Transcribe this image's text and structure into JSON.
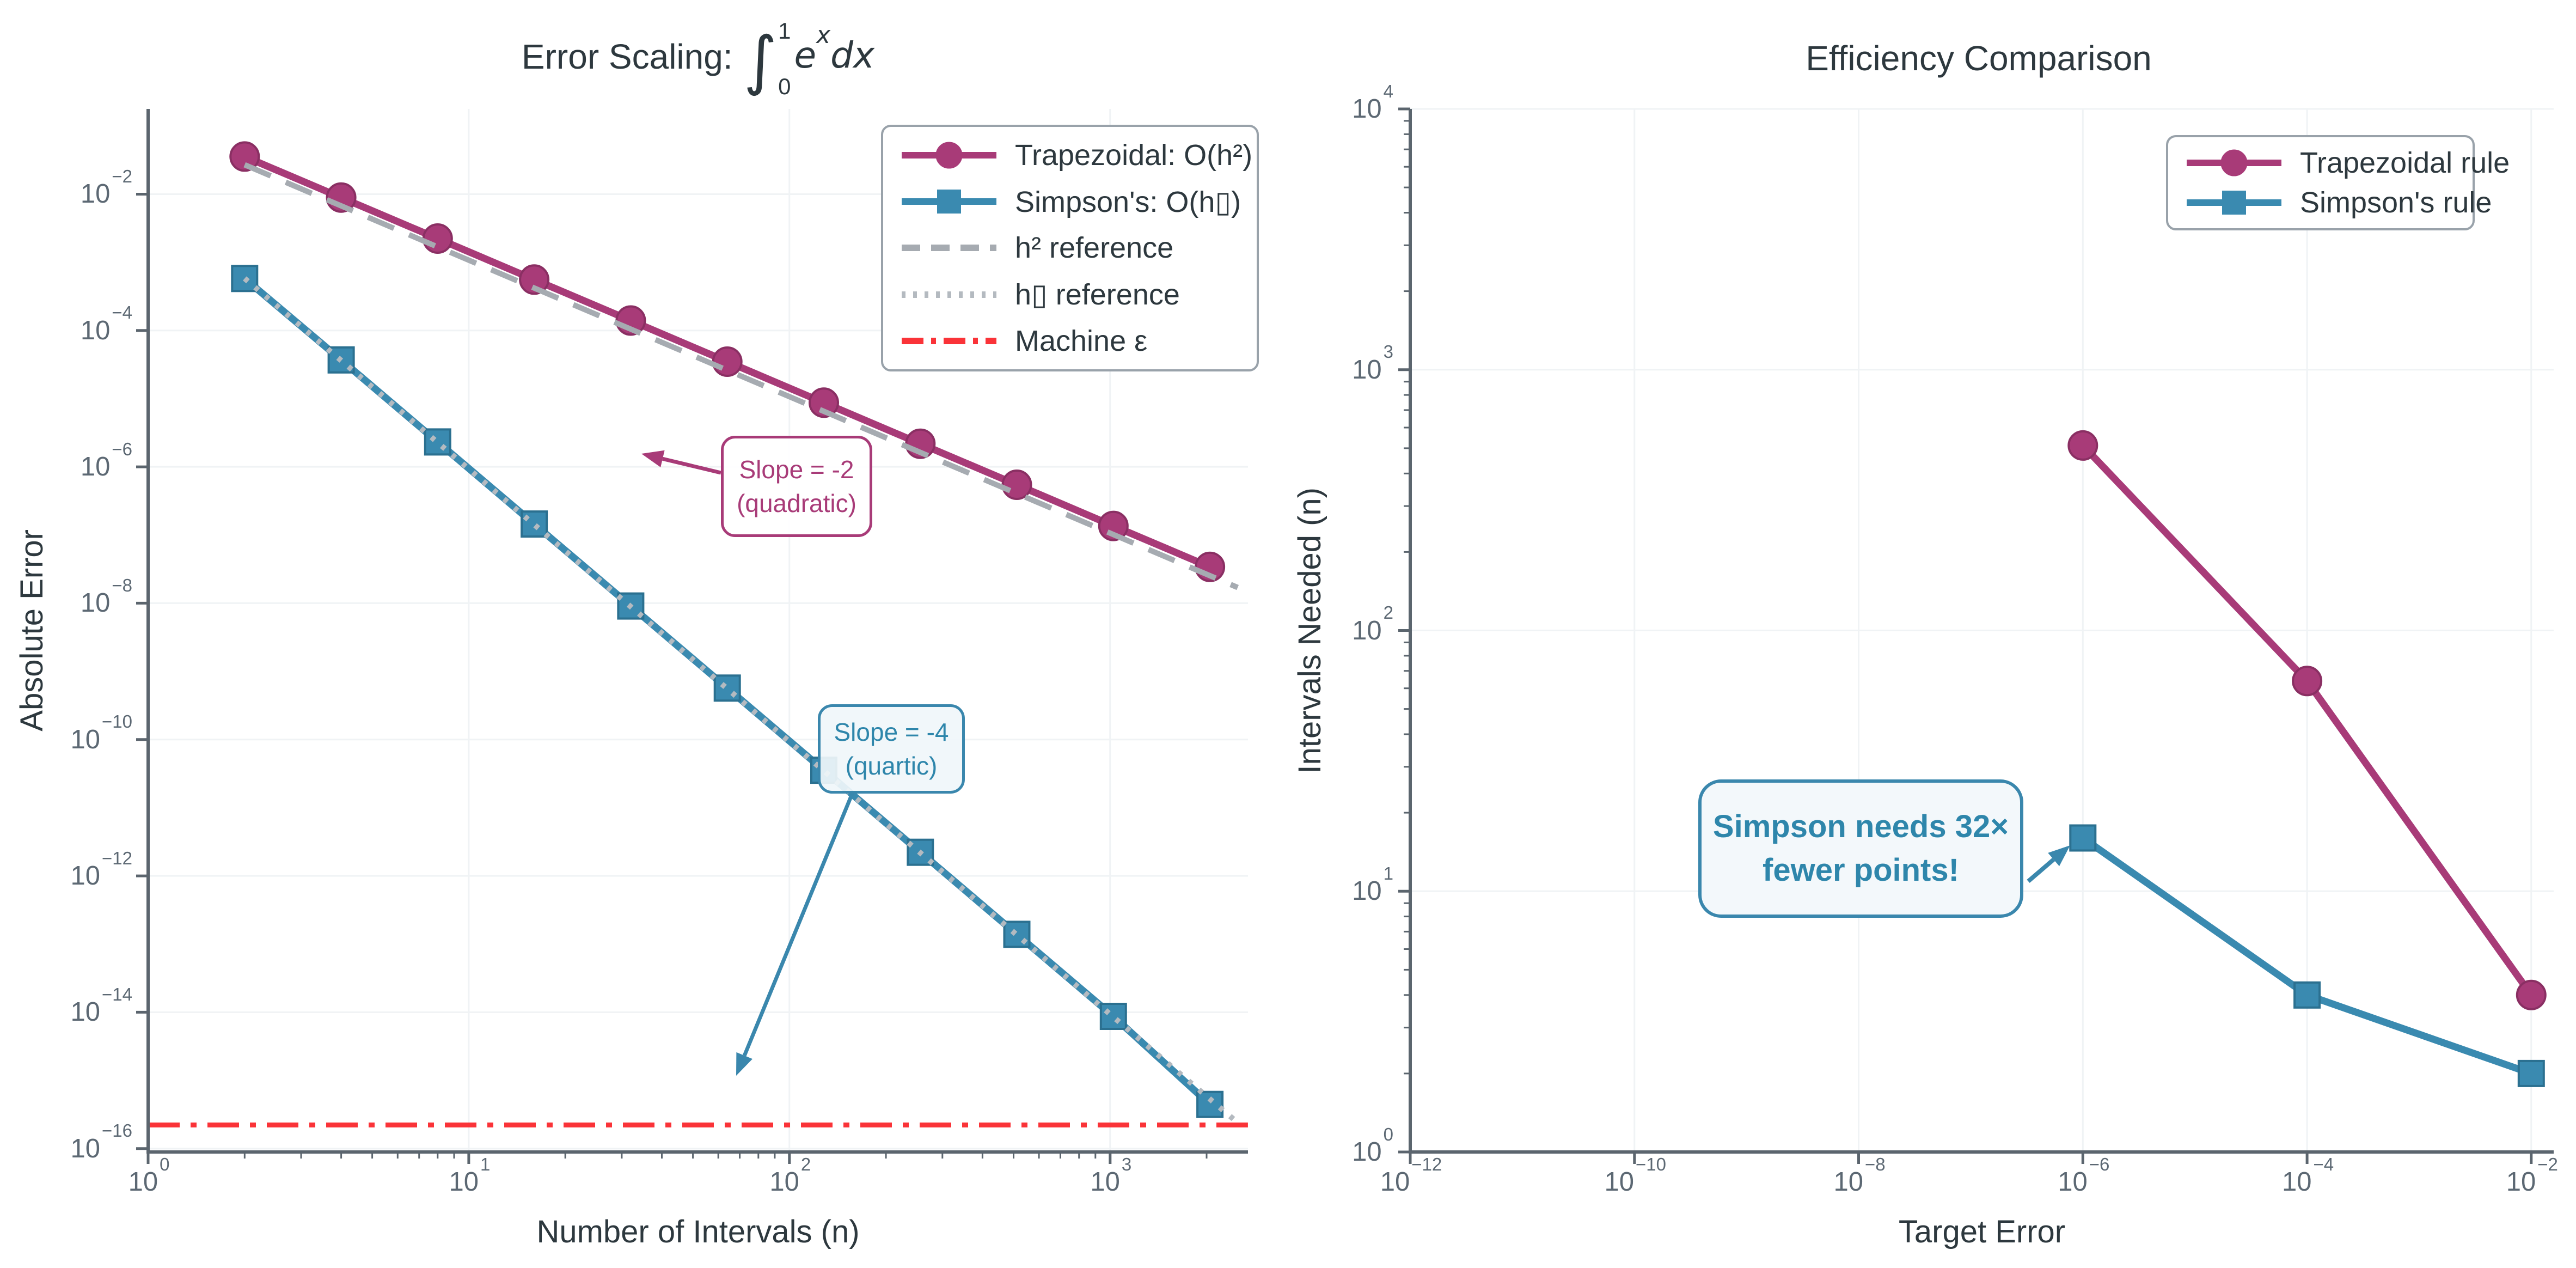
{
  "style": {
    "background": "#ffffff",
    "spine_color": "#5b656e",
    "grid_color": "#f0f3f5",
    "tick_label_color": "#5c6873",
    "text_color": "#2d383e",
    "trapezoidal_color": "#a83b78",
    "trapezoidal_edge": "#8a2f63",
    "simpson_color": "#3a8ab0",
    "simpson_edge": "#2b7090",
    "h2_reference_color": "#a6abb1",
    "h4_reference_color": "#b4bac0",
    "machine_eps_color": "#fa3338"
  },
  "chart_data": [
    {
      "type": "line",
      "title": {
        "text": "Error Scaling:",
        "integral_symbol": "∫",
        "upper_limit": "1",
        "lower_limit": "0",
        "integrand": "e",
        "integrand_power": "x",
        "differential": "dx"
      },
      "xlabel": "Number of Intervals (n)",
      "ylabel": "Absolute Error",
      "x_scale": "log",
      "y_scale": "log",
      "xlim_exp": [
        0,
        3.43
      ],
      "ylim_exp": [
        -16.05,
        -0.75
      ],
      "x_tick_exponents": [
        0,
        1,
        2,
        3
      ],
      "y_tick_exponents": [
        -2,
        -4,
        -6,
        -8,
        -10,
        -12,
        -14,
        -16
      ],
      "grid": true,
      "machine_epsilon": 2.22e-16,
      "series": [
        {
          "name": "Trapezoidal",
          "color": "#a83b78",
          "edge": "#8a2f63",
          "style": "solid",
          "marker": "circle",
          "x": [
            2,
            4,
            8,
            16,
            32,
            64,
            128,
            256,
            512,
            1024,
            2048
          ],
          "y": [
            0.0356,
            0.00892,
            0.00223,
            0.000558,
            0.00014,
            3.49e-05,
            8.73e-06,
            2.18e-06,
            5.46e-07,
            1.36e-07,
            3.41e-08
          ]
        },
        {
          "name": "Simpson's",
          "color": "#3a8ab0",
          "edge": "#2b7090",
          "style": "solid",
          "marker": "square",
          "x": [
            2,
            4,
            8,
            16,
            32,
            64,
            128,
            256,
            512,
            1024,
            2048
          ],
          "y": [
            0.000579,
            3.7e-05,
            2.32e-06,
            1.45e-07,
            9.09e-09,
            5.68e-10,
            3.55e-11,
            2.22e-12,
            1.39e-13,
            8.7e-15,
            4.44e-16
          ]
        },
        {
          "name": "h² reference",
          "color": "#a6abb1",
          "style": "dashed",
          "marker": "none",
          "x": [
            2,
            2500
          ],
          "y": [
            0.027,
            1.7e-08
          ]
        },
        {
          "name": "h▯ reference",
          "color": "#b4bac0",
          "style": "dotted",
          "marker": "none",
          "x": [
            2,
            2500
          ],
          "y": [
            0.00058,
            2.4e-16
          ]
        },
        {
          "name": "Machine ε",
          "color": "#fa3338",
          "style": "dashdot",
          "marker": "none",
          "x": [
            1,
            2690
          ],
          "y": [
            2.22e-16,
            2.22e-16
          ]
        }
      ],
      "legend": {
        "position": "upper right",
        "items": [
          {
            "label": "Trapezoidal: O(h²)",
            "color": "#a83b78",
            "style": "solid",
            "marker": "circle"
          },
          {
            "label": "Simpson's: O(h▯)",
            "color": "#3a8ab0",
            "style": "solid",
            "marker": "square"
          },
          {
            "label": "h² reference",
            "color": "#a6abb1",
            "style": "dashed",
            "marker": "none"
          },
          {
            "label": "h▯ reference",
            "color": "#b4bac0",
            "style": "dotted",
            "marker": "none"
          },
          {
            "label": "Machine ε",
            "color": "#fa3338",
            "style": "dashdot",
            "marker": "none"
          }
        ]
      },
      "annotations": [
        {
          "lines": [
            "Slope = -2",
            "(quadratic)"
          ],
          "color": "#a83b78"
        },
        {
          "lines": [
            "Slope = -4",
            "(quartic)"
          ],
          "color": "#2e86ab"
        }
      ]
    },
    {
      "type": "line",
      "title": "Efficiency Comparison",
      "xlabel": "Target Error",
      "ylabel": "Intervals Needed (n)",
      "x_scale": "log",
      "y_scale": "log",
      "xlim_exp": [
        -12,
        -1.8
      ],
      "ylim_exp": [
        0,
        4
      ],
      "x_tick_exponents": [
        -12,
        -10,
        -8,
        -6,
        -4,
        -2
      ],
      "y_tick_exponents": [
        0,
        1,
        2,
        3,
        4
      ],
      "grid": true,
      "series": [
        {
          "name": "Trapezoidal rule",
          "color": "#a83b78",
          "edge": "#8a2f63",
          "style": "solid",
          "marker": "circle",
          "x": [
            1e-06,
            0.0001,
            0.01
          ],
          "y": [
            512,
            64,
            4
          ]
        },
        {
          "name": "Simpson's rule",
          "color": "#3a8ab0",
          "edge": "#2b7090",
          "style": "solid",
          "marker": "square",
          "x": [
            1e-06,
            0.0001,
            0.01
          ],
          "y": [
            16,
            4,
            2
          ]
        }
      ],
      "legend": {
        "position": "upper right",
        "items": [
          {
            "label": "Trapezoidal rule",
            "color": "#a83b78",
            "style": "solid",
            "marker": "circle"
          },
          {
            "label": "Simpson's rule",
            "color": "#3a8ab0",
            "style": "solid",
            "marker": "square"
          }
        ]
      },
      "annotations": [
        {
          "lines": [
            "Simpson needs 32×",
            "fewer points!"
          ],
          "color": "#2e86ab",
          "bold": true
        }
      ]
    }
  ]
}
